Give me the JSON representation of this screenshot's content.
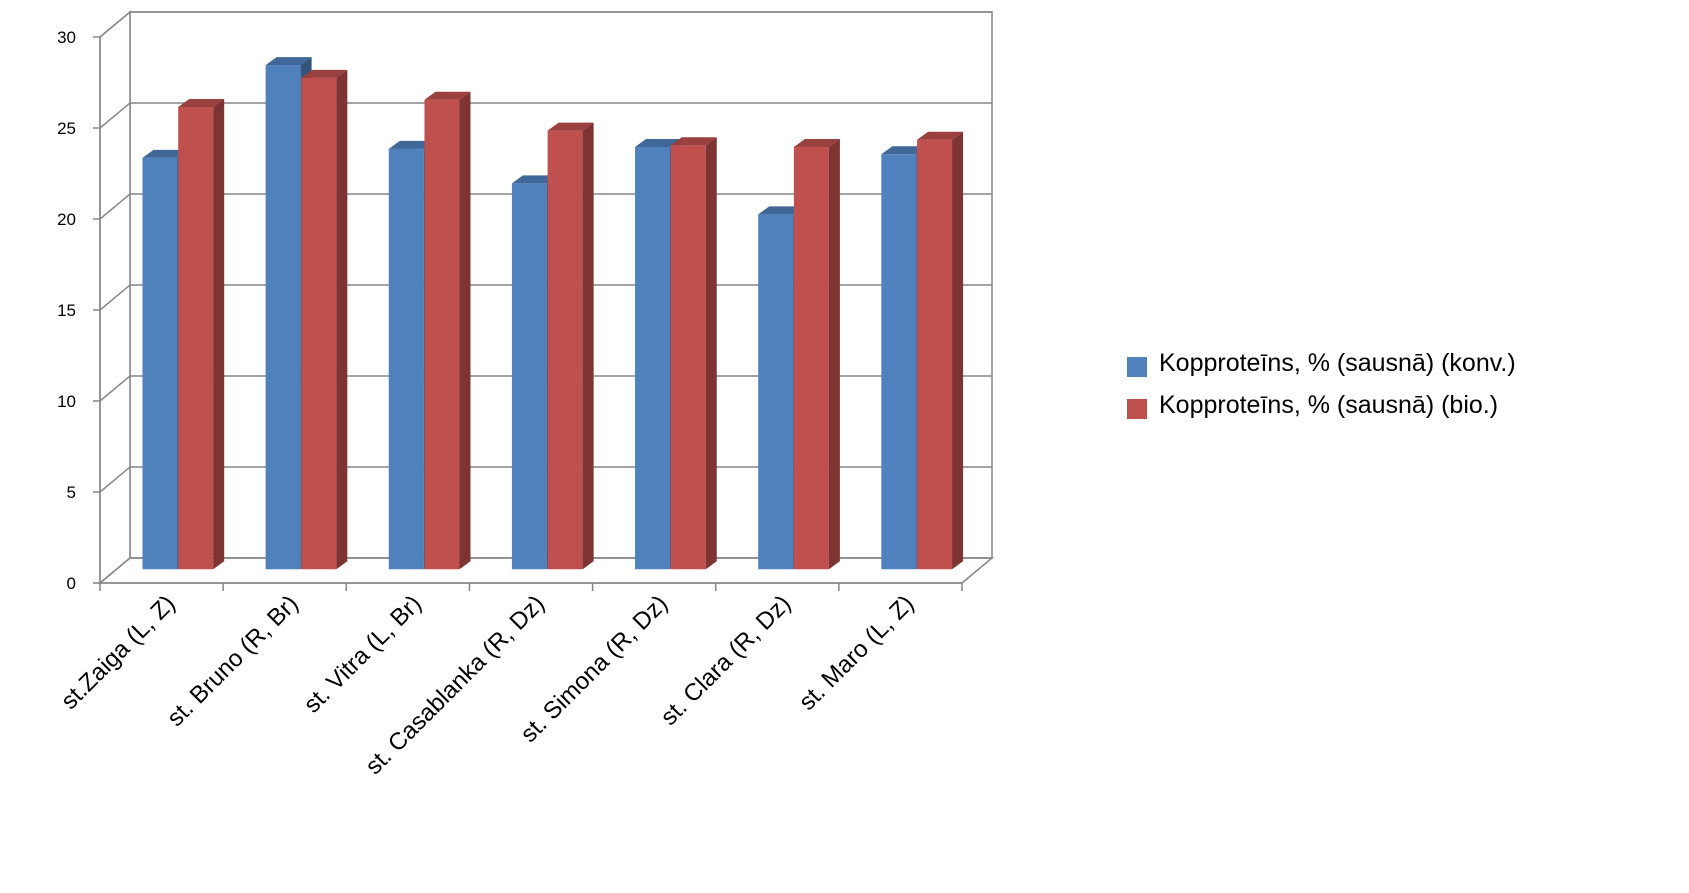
{
  "chart_data": {
    "type": "bar",
    "categories": [
      "st.Zaiga (L, Z)",
      "st. Bruno (R, Br)",
      "st. Vitra (L, Br)",
      "st. Casablanka (R, Dz)",
      "st. Simona (R, Dz)",
      "st. Clara (R, Dz)",
      "st. Maro (L, Z)"
    ],
    "series": [
      {
        "name": "Kopproteīns, % (sausnā) (konv.)",
        "values": [
          22.6,
          27.7,
          23.1,
          21.2,
          23.2,
          19.5,
          22.8
        ],
        "color": "#4F81BD"
      },
      {
        "name": "Kopproteīns, % (sausnā) (bio.)",
        "values": [
          25.4,
          27.0,
          25.8,
          24.1,
          23.3,
          23.2,
          23.6
        ],
        "color": "#C0504D"
      }
    ],
    "yticks": [
      "0",
      "5",
      "10",
      "15",
      "20",
      "25",
      "30"
    ],
    "ylim": [
      0,
      30
    ],
    "grid": true,
    "legend_position": "right"
  }
}
